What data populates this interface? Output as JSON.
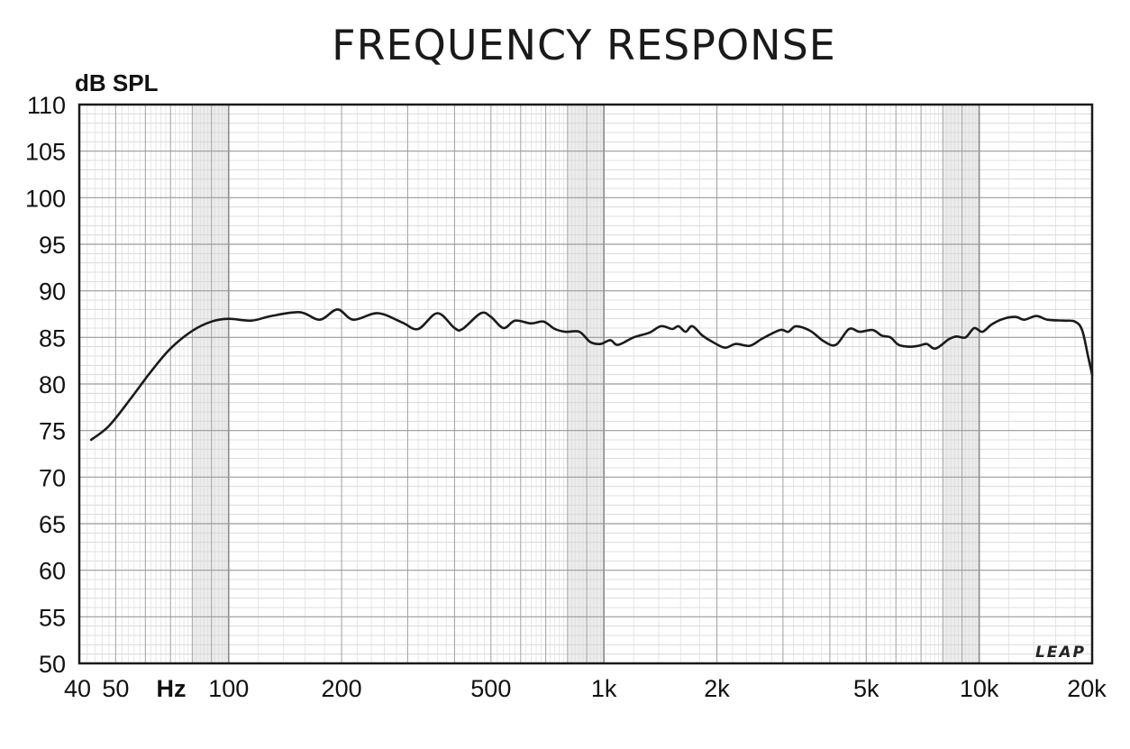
{
  "chart_data": {
    "type": "line",
    "title": "FREQUENCY RESPONSE",
    "ylabel": "dB SPL",
    "xlabel": "Hz",
    "x_scale": "log",
    "xlim": [
      40,
      20000
    ],
    "ylim": [
      50,
      110
    ],
    "grid": true,
    "y_ticks": [
      "50",
      "55",
      "60",
      "65",
      "70",
      "75",
      "80",
      "85",
      "90",
      "95",
      "100",
      "105",
      "110"
    ],
    "x_ticks": [
      {
        "value": 40,
        "label": "40"
      },
      {
        "value": 50,
        "label": "50"
      },
      {
        "value": 100,
        "label": "100"
      },
      {
        "value": 200,
        "label": "200"
      },
      {
        "value": 500,
        "label": "500"
      },
      {
        "value": 1000,
        "label": "1k"
      },
      {
        "value": 2000,
        "label": "2k"
      },
      {
        "value": 5000,
        "label": "5k"
      },
      {
        "value": 10000,
        "label": "10k"
      },
      {
        "value": 20000,
        "label": "20k"
      }
    ],
    "watermark": "LEAP",
    "series": [
      {
        "color": "#1a1a1a",
        "points": [
          [
            43,
            74
          ],
          [
            48,
            75.5
          ],
          [
            55,
            78.5
          ],
          [
            62,
            81.3
          ],
          [
            70,
            83.8
          ],
          [
            80,
            85.7
          ],
          [
            90,
            86.7
          ],
          [
            100,
            87.0
          ],
          [
            115,
            86.8
          ],
          [
            130,
            87.3
          ],
          [
            155,
            87.7
          ],
          [
            175,
            86.9
          ],
          [
            195,
            88.0
          ],
          [
            215,
            86.9
          ],
          [
            250,
            87.6
          ],
          [
            290,
            86.6
          ],
          [
            320,
            85.9
          ],
          [
            360,
            87.6
          ],
          [
            400,
            86.0
          ],
          [
            420,
            85.9
          ],
          [
            470,
            87.6
          ],
          [
            500,
            87.2
          ],
          [
            540,
            86.0
          ],
          [
            580,
            86.8
          ],
          [
            640,
            86.5
          ],
          [
            690,
            86.7
          ],
          [
            740,
            85.9
          ],
          [
            790,
            85.6
          ],
          [
            860,
            85.6
          ],
          [
            920,
            84.5
          ],
          [
            980,
            84.3
          ],
          [
            1040,
            84.7
          ],
          [
            1090,
            84.2
          ],
          [
            1200,
            85.0
          ],
          [
            1320,
            85.5
          ],
          [
            1420,
            86.2
          ],
          [
            1520,
            85.9
          ],
          [
            1580,
            86.2
          ],
          [
            1650,
            85.6
          ],
          [
            1720,
            86.2
          ],
          [
            1830,
            85.2
          ],
          [
            1950,
            84.5
          ],
          [
            2100,
            83.9
          ],
          [
            2250,
            84.3
          ],
          [
            2450,
            84.1
          ],
          [
            2650,
            84.9
          ],
          [
            2950,
            85.8
          ],
          [
            3100,
            85.6
          ],
          [
            3250,
            86.2
          ],
          [
            3550,
            85.7
          ],
          [
            3850,
            84.6
          ],
          [
            4150,
            84.2
          ],
          [
            4500,
            85.9
          ],
          [
            4800,
            85.6
          ],
          [
            5200,
            85.8
          ],
          [
            5500,
            85.2
          ],
          [
            5800,
            85.0
          ],
          [
            6100,
            84.2
          ],
          [
            6500,
            84.0
          ],
          [
            6900,
            84.1
          ],
          [
            7250,
            84.3
          ],
          [
            7650,
            83.8
          ],
          [
            8300,
            84.8
          ],
          [
            8700,
            85.1
          ],
          [
            9200,
            85.0
          ],
          [
            9700,
            86.0
          ],
          [
            10200,
            85.6
          ],
          [
            10800,
            86.4
          ],
          [
            11600,
            87.0
          ],
          [
            12500,
            87.2
          ],
          [
            13200,
            86.9
          ],
          [
            14200,
            87.3
          ],
          [
            15200,
            86.9
          ],
          [
            16800,
            86.8
          ],
          [
            18000,
            86.7
          ],
          [
            18800,
            85.8
          ],
          [
            19500,
            83.0
          ],
          [
            20000,
            81.0
          ]
        ]
      }
    ]
  }
}
